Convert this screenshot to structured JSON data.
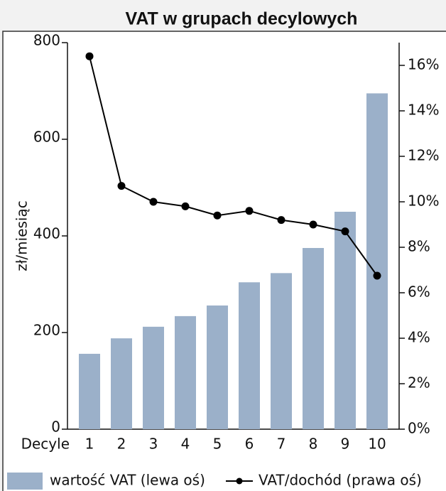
{
  "chart_data": {
    "type": "bar",
    "title": "VAT w grupach decylowych",
    "y_label": "zł/miesiąc",
    "x_label": "Decyle",
    "categories": [
      "1",
      "2",
      "3",
      "4",
      "5",
      "6",
      "7",
      "8",
      "9",
      "10"
    ],
    "series": [
      {
        "name": "wartość VAT (lewa oś)",
        "type": "bar",
        "color": "#9bb0c9",
        "values": [
          156,
          188,
          212,
          234,
          256,
          304,
          323,
          375,
          450,
          695
        ]
      },
      {
        "name": "VAT/dochód (prawa oś)",
        "type": "line",
        "axis": "y2",
        "color": "#000000",
        "values": [
          16.4,
          10.7,
          10.0,
          9.8,
          9.4,
          9.6,
          9.2,
          9.0,
          8.7,
          6.75
        ]
      }
    ],
    "ylim": [
      0,
      800
    ],
    "yticks": [
      0,
      200,
      400,
      600,
      800
    ],
    "y2lim": [
      0,
      17
    ],
    "y2ticks": [
      {
        "value": 0,
        "label": "0%"
      },
      {
        "value": 2,
        "label": "2%"
      },
      {
        "value": 4,
        "label": "4%"
      },
      {
        "value": 6,
        "label": "6%"
      },
      {
        "value": 8,
        "label": "8%"
      },
      {
        "value": 10,
        "label": "10%"
      },
      {
        "value": 12,
        "label": "12%"
      },
      {
        "value": 14,
        "label": "14%"
      },
      {
        "value": 16,
        "label": "16%"
      }
    ],
    "legend": "bottom"
  }
}
